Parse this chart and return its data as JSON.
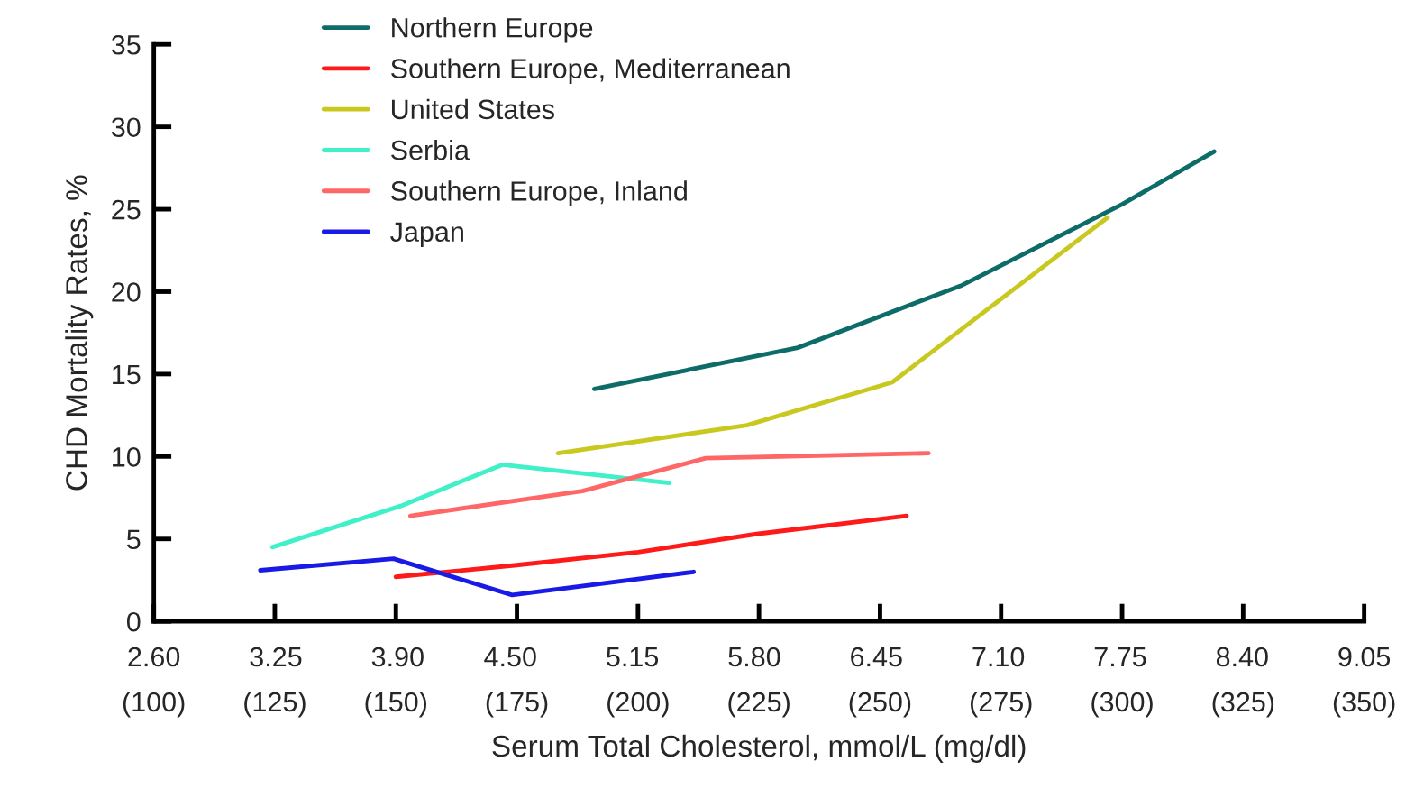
{
  "chart_data": {
    "type": "line",
    "xlabel": "Serum Total Cholesterol, mmol/L (mg/dl)",
    "ylabel": "CHD Mortality Rates, %",
    "xlim": [
      100,
      350
    ],
    "ylim": [
      0,
      35
    ],
    "xticks": [
      {
        "value": 100,
        "label": "(100)"
      },
      {
        "value": 125,
        "label": "(125)"
      },
      {
        "value": 150,
        "label": "(150)"
      },
      {
        "value": 175,
        "label": "(175)"
      },
      {
        "value": 200,
        "label": "(200)"
      },
      {
        "value": 225,
        "label": "(225)"
      },
      {
        "value": 250,
        "label": "(250)"
      },
      {
        "value": 275,
        "label": "(275)"
      },
      {
        "value": 300,
        "label": "(300)"
      },
      {
        "value": 325,
        "label": "(325)"
      },
      {
        "value": 350,
        "label": "(350)"
      }
    ],
    "x2lim": [
      2.6,
      9.05
    ],
    "x2ticks": [
      {
        "value": 2.6,
        "label": "2.60"
      },
      {
        "value": 3.25,
        "label": "3.25"
      },
      {
        "value": 3.9,
        "label": "3.90"
      },
      {
        "value": 4.5,
        "label": "4.50"
      },
      {
        "value": 5.15,
        "label": "5.15"
      },
      {
        "value": 5.8,
        "label": "5.80"
      },
      {
        "value": 6.45,
        "label": "6.45"
      },
      {
        "value": 7.1,
        "label": "7.10"
      },
      {
        "value": 7.75,
        "label": "7.75"
      },
      {
        "value": 8.4,
        "label": "8.40"
      },
      {
        "value": 9.05,
        "label": "9.05"
      }
    ],
    "yticks": [
      0,
      5,
      10,
      15,
      20,
      25,
      30,
      35
    ],
    "legend": "top left",
    "grid": false,
    "marker": "none",
    "line_style": "solid",
    "series": [
      {
        "name": "Northern Europe",
        "color": "#0d6b68",
        "x": [
          191,
          233,
          267,
          300,
          319
        ],
        "values": [
          14.1,
          16.6,
          20.4,
          25.3,
          28.5
        ]
      },
      {
        "name": "Southern Europe, Mediterranean",
        "color": "#ff1a1a",
        "x": [
          150,
          174.5,
          200,
          224.5,
          255.5
        ],
        "values": [
          2.7,
          3.4,
          4.2,
          5.3,
          6.4
        ]
      },
      {
        "name": "United States",
        "color": "#c8c81e",
        "x": [
          183.5,
          222.5,
          252.5,
          297
        ],
        "values": [
          10.2,
          11.9,
          14.5,
          24.5
        ]
      },
      {
        "name": "Serbia",
        "color": "#3ff0c8",
        "x": [
          124.5,
          151,
          172,
          206.5
        ],
        "values": [
          4.5,
          7.0,
          9.5,
          8.4
        ]
      },
      {
        "name": "Southern Europe, Inland",
        "color": "#ff6666",
        "x": [
          153,
          188.5,
          214,
          260
        ],
        "values": [
          6.4,
          7.9,
          9.9,
          10.2
        ]
      },
      {
        "name": "Japan",
        "color": "#1a1ae6",
        "x": [
          122,
          149.5,
          174,
          211.5
        ],
        "values": [
          3.1,
          3.8,
          1.6,
          3.0
        ]
      }
    ]
  }
}
